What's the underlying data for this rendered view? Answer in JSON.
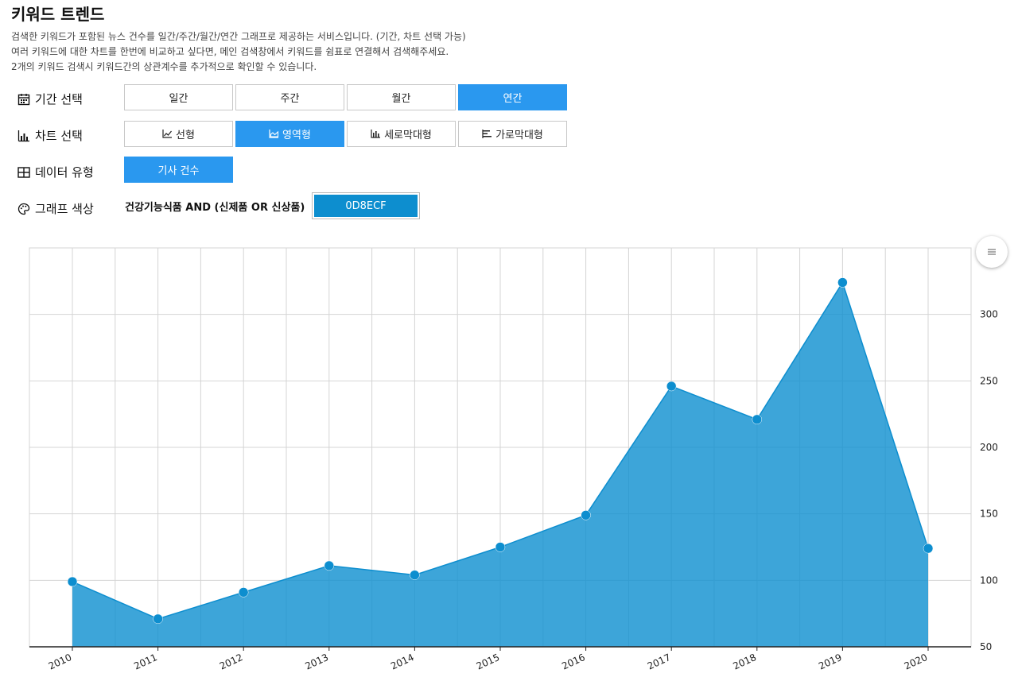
{
  "header": {
    "title": "키워드 트렌드",
    "desc": [
      "검색한 키워드가 포함된 뉴스 건수를 일간/주간/월간/연간 그래프로 제공하는 서비스입니다. (기간, 차트 선택 가능)",
      "여러 키워드에 대한 차트를 한번에 비교하고 싶다면, 메인 검색창에서 키워드를 쉼표로 연결해서 검색해주세요.",
      "2개의 키워드 검색시 키워드간의 상관계수를 추가적으로 확인할 수 있습니다."
    ]
  },
  "period": {
    "label": "기간 선택",
    "icon": "calendar-icon",
    "options": [
      "일간",
      "주간",
      "월간",
      "연간"
    ],
    "selected": "연간"
  },
  "chart_type": {
    "label": "차트 선택",
    "icon": "bar-chart-icon",
    "options": [
      {
        "label": "선형",
        "icon": "line-chart-icon"
      },
      {
        "label": "영역형",
        "icon": "area-chart-icon"
      },
      {
        "label": "세로막대형",
        "icon": "column-chart-icon"
      },
      {
        "label": "가로막대형",
        "icon": "horizontal-bar-icon"
      }
    ],
    "selected": "영역형"
  },
  "data_type": {
    "label": "데이터 유형",
    "icon": "table-icon",
    "options": [
      "기사 건수"
    ],
    "selected": "기사 건수"
  },
  "graph_color": {
    "label": "그래프 색상",
    "icon": "palette-icon",
    "keyword": "건강기능식품 AND (신제품 OR 신상품)",
    "color_code": "0D8ECF",
    "color": "#0D8ECF"
  },
  "accent_color": "#2A98EF",
  "zoom_icon": "zoom-handle-icon",
  "chart_data": {
    "type": "area",
    "x": [
      "2010",
      "2011",
      "2012",
      "2013",
      "2014",
      "2015",
      "2016",
      "2017",
      "2018",
      "2019",
      "2020"
    ],
    "series": [
      {
        "values": [
          99,
          71,
          91,
          111,
          104,
          125,
          149,
          246,
          221,
          324,
          124
        ]
      }
    ],
    "title": "",
    "xlabel": "",
    "ylabel": "",
    "ylim": [
      50,
      350
    ],
    "yticks": [
      50,
      100,
      150,
      200,
      250,
      300,
      350
    ],
    "y_axis_position": "right",
    "grid": true,
    "legend": "none"
  }
}
